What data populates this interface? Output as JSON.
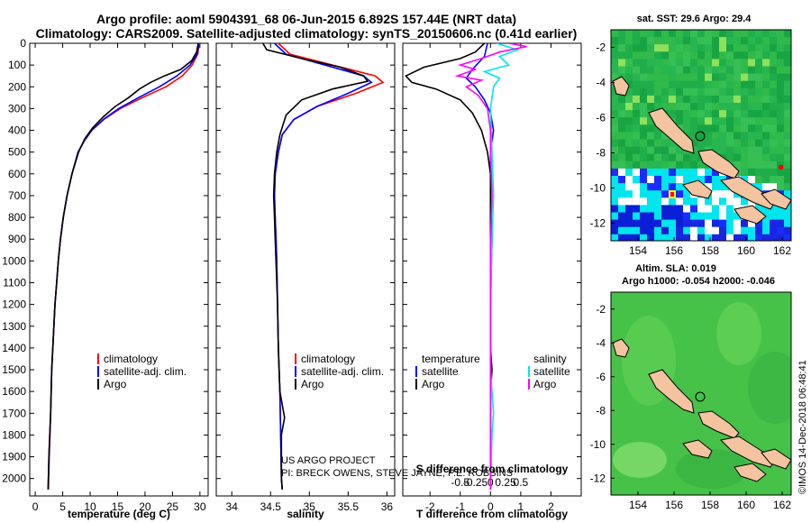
{
  "title": {
    "line1": "Argo profile: aoml 5904391_68 06-Jun-2015 6.892S 157.44E (NRT data)",
    "line2": "Climatology: CARS2009. Satellite-adjusted climatology: synTS_20150606.nc (0.41d earlier)"
  },
  "colors": {
    "climatology": "#ff0000",
    "satellite": "#0000ff",
    "argo": "#000000",
    "sat_salinity": "#00e5ee",
    "argo_salinity": "#ff00ff"
  },
  "chart_data": [
    {
      "id": "temperature",
      "type": "line",
      "xlabel": "temperature (deg C)",
      "xlim": [
        -1,
        31.5
      ],
      "xticks": [
        "0",
        "5",
        "10",
        "15",
        "20",
        "25",
        "30"
      ],
      "xtick_values": [
        0,
        5,
        10,
        15,
        20,
        25,
        30
      ],
      "ylim": [
        0,
        2080
      ],
      "yticks": [
        "0",
        "100",
        "200",
        "300",
        "400",
        "500",
        "600",
        "700",
        "800",
        "900",
        "1000",
        "1100",
        "1200",
        "1300",
        "1400",
        "1500",
        "1600",
        "1700",
        "1800",
        "1900",
        "2000"
      ],
      "ytick_values": [
        0,
        100,
        200,
        300,
        400,
        500,
        600,
        700,
        800,
        900,
        1000,
        1100,
        1200,
        1300,
        1400,
        1500,
        1600,
        1700,
        1800,
        1900,
        2000
      ],
      "legend": [
        "climatology",
        "satellite-adj. clim.",
        "Argo"
      ],
      "series": [
        {
          "name": "climatology",
          "color": "#ff0000",
          "points": [
            [
              29.9,
              0
            ],
            [
              29.6,
              50
            ],
            [
              28.6,
              100
            ],
            [
              26.8,
              150
            ],
            [
              23.8,
              200
            ],
            [
              19.5,
              250
            ],
            [
              15.5,
              300
            ],
            [
              12.5,
              350
            ],
            [
              10.3,
              400
            ],
            [
              8.9,
              450
            ],
            [
              7.8,
              500
            ],
            [
              6.7,
              600
            ],
            [
              5.8,
              700
            ],
            [
              5.1,
              800
            ],
            [
              4.6,
              900
            ],
            [
              4.2,
              1000
            ],
            [
              3.9,
              1100
            ],
            [
              3.6,
              1200
            ],
            [
              3.4,
              1300
            ],
            [
              3.2,
              1400
            ],
            [
              3.0,
              1500
            ],
            [
              2.9,
              1600
            ],
            [
              2.8,
              1700
            ],
            [
              2.7,
              1800
            ],
            [
              2.55,
              1900
            ],
            [
              2.45,
              2000
            ],
            [
              2.4,
              2050
            ]
          ]
        },
        {
          "name": "satellite-adj. clim.",
          "color": "#0000ff",
          "points": [
            [
              29.8,
              0
            ],
            [
              29.5,
              50
            ],
            [
              28.2,
              100
            ],
            [
              25.8,
              150
            ],
            [
              22.6,
              200
            ],
            [
              18.8,
              250
            ],
            [
              15.2,
              300
            ],
            [
              12.4,
              350
            ],
            [
              10.3,
              400
            ],
            [
              8.9,
              450
            ],
            [
              7.8,
              500
            ],
            [
              6.7,
              600
            ],
            [
              5.8,
              700
            ],
            [
              5.1,
              800
            ],
            [
              4.6,
              900
            ],
            [
              4.2,
              1000
            ],
            [
              3.9,
              1100
            ],
            [
              3.6,
              1200
            ],
            [
              3.4,
              1300
            ],
            [
              3.2,
              1400
            ],
            [
              3.0,
              1500
            ],
            [
              2.9,
              1600
            ],
            [
              2.8,
              1700
            ],
            [
              2.65,
              1800
            ],
            [
              2.5,
              1900
            ],
            [
              2.4,
              2000
            ],
            [
              2.35,
              2050
            ]
          ]
        },
        {
          "name": "Argo",
          "color": "#000000",
          "points": [
            [
              29.7,
              0
            ],
            [
              29.4,
              40
            ],
            [
              28.5,
              80
            ],
            [
              26.5,
              120
            ],
            [
              23.5,
              150
            ],
            [
              21.0,
              180
            ],
            [
              19.0,
              210
            ],
            [
              17.0,
              250
            ],
            [
              14.6,
              290
            ],
            [
              12.3,
              340
            ],
            [
              10.4,
              390
            ],
            [
              9.0,
              440
            ],
            [
              7.9,
              500
            ],
            [
              6.7,
              600
            ],
            [
              5.8,
              700
            ],
            [
              5.1,
              800
            ],
            [
              4.6,
              900
            ],
            [
              4.2,
              1000
            ],
            [
              3.9,
              1100
            ],
            [
              3.6,
              1200
            ],
            [
              3.4,
              1300
            ],
            [
              3.2,
              1400
            ],
            [
              3.0,
              1500
            ],
            [
              2.9,
              1600
            ],
            [
              2.8,
              1700
            ],
            [
              2.65,
              1800
            ],
            [
              2.5,
              1900
            ],
            [
              2.4,
              2000
            ],
            [
              2.35,
              2050
            ]
          ]
        }
      ]
    },
    {
      "id": "salinity",
      "type": "line",
      "xlabel": "salinity",
      "xlim": [
        33.8,
        36.1
      ],
      "xticks": [
        "34",
        "34.5",
        "35",
        "35.5",
        "36"
      ],
      "xtick_values": [
        34,
        34.5,
        35,
        35.5,
        36
      ],
      "ylim": [
        0,
        2080
      ],
      "legend": [
        "climatology",
        "satellite-adj. clim.",
        "Argo"
      ],
      "credits": [
        "US ARGO PROJECT",
        "PI: BRECK OWENS, STEVE JAYNE, P.E. ROBBINS"
      ],
      "series": [
        {
          "name": "climatology",
          "color": "#ff0000",
          "points": [
            [
              34.6,
              0
            ],
            [
              34.75,
              50
            ],
            [
              35.3,
              100
            ],
            [
              35.85,
              150
            ],
            [
              35.95,
              180
            ],
            [
              35.6,
              230
            ],
            [
              35.1,
              290
            ],
            [
              34.8,
              350
            ],
            [
              34.65,
              420
            ],
            [
              34.6,
              500
            ],
            [
              34.56,
              600
            ],
            [
              34.55,
              700
            ],
            [
              34.56,
              800
            ],
            [
              34.57,
              900
            ],
            [
              34.58,
              1000
            ],
            [
              34.59,
              1200
            ],
            [
              34.6,
              1400
            ],
            [
              34.62,
              1600
            ],
            [
              34.63,
              1800
            ],
            [
              34.64,
              2000
            ],
            [
              34.65,
              2050
            ]
          ]
        },
        {
          "name": "satellite-adj. clim.",
          "color": "#0000ff",
          "points": [
            [
              34.55,
              0
            ],
            [
              34.7,
              50
            ],
            [
              35.2,
              100
            ],
            [
              35.7,
              150
            ],
            [
              35.8,
              180
            ],
            [
              35.5,
              230
            ],
            [
              35.1,
              290
            ],
            [
              34.8,
              350
            ],
            [
              34.65,
              420
            ],
            [
              34.6,
              500
            ],
            [
              34.56,
              600
            ],
            [
              34.55,
              700
            ],
            [
              34.56,
              800
            ],
            [
              34.57,
              900
            ],
            [
              34.58,
              1000
            ],
            [
              34.59,
              1200
            ],
            [
              34.6,
              1400
            ],
            [
              34.62,
              1600
            ],
            [
              34.63,
              1800
            ],
            [
              34.64,
              2000
            ],
            [
              34.65,
              2050
            ]
          ]
        },
        {
          "name": "Argo",
          "color": "#000000",
          "points": [
            [
              34.4,
              0
            ],
            [
              34.45,
              30
            ],
            [
              34.9,
              70
            ],
            [
              35.4,
              110
            ],
            [
              35.7,
              150
            ],
            [
              35.75,
              175
            ],
            [
              35.3,
              210
            ],
            [
              34.9,
              260
            ],
            [
              34.7,
              330
            ],
            [
              34.62,
              420
            ],
            [
              34.58,
              500
            ],
            [
              34.55,
              600
            ],
            [
              34.54,
              700
            ],
            [
              34.55,
              800
            ],
            [
              34.56,
              900
            ],
            [
              34.57,
              1000
            ],
            [
              34.59,
              1200
            ],
            [
              34.6,
              1400
            ],
            [
              34.62,
              1600
            ],
            [
              34.68,
              1720
            ],
            [
              34.64,
              1800
            ],
            [
              34.64,
              2000
            ],
            [
              34.65,
              2050
            ]
          ]
        }
      ]
    },
    {
      "id": "difference",
      "type": "line",
      "xlabel": "T difference from climatology",
      "xlim": [
        -2.9,
        3.0
      ],
      "xticks": [
        "-2",
        "-1",
        "0",
        "1",
        "2"
      ],
      "xtick_values": [
        -2,
        -1,
        0,
        1,
        2
      ],
      "top_label": "S difference from climatology",
      "s_ticks": [
        "-0.5",
        "-0.25",
        "0",
        "0.25",
        "0.5"
      ],
      "s_tick_values": [
        -0.5,
        -0.25,
        0,
        0.25,
        0.5
      ],
      "legend": {
        "temp_header": "temperature",
        "sal_header": "salinity",
        "satellite": "satellite",
        "argo": "Argo"
      },
      "series": [
        {
          "name": "T satellite",
          "color": "#0000ff",
          "points": [
            [
              -0.1,
              0
            ],
            [
              -0.2,
              60
            ],
            [
              -0.6,
              120
            ],
            [
              -0.8,
              160
            ],
            [
              -0.5,
              200
            ],
            [
              -0.2,
              260
            ],
            [
              0.0,
              320
            ],
            [
              0.1,
              400
            ],
            [
              0.0,
              500
            ],
            [
              0.0,
              700
            ],
            [
              0.05,
              900
            ],
            [
              0.0,
              1200
            ],
            [
              0.0,
              1500
            ],
            [
              0.0,
              1800
            ],
            [
              0.0,
              2050
            ]
          ]
        },
        {
          "name": "T Argo",
          "color": "#000000",
          "points": [
            [
              -0.2,
              0
            ],
            [
              -0.5,
              40
            ],
            [
              -1.0,
              70
            ],
            [
              -2.2,
              110
            ],
            [
              -2.8,
              150
            ],
            [
              -2.6,
              180
            ],
            [
              -1.8,
              210
            ],
            [
              -1.0,
              260
            ],
            [
              -0.6,
              320
            ],
            [
              -0.3,
              400
            ],
            [
              -0.1,
              500
            ],
            [
              0.0,
              600
            ],
            [
              0.0,
              800
            ],
            [
              0.0,
              1000
            ],
            [
              0.0,
              1200
            ],
            [
              0.0,
              1400
            ],
            [
              0.05,
              1500
            ],
            [
              0.0,
              1600
            ],
            [
              0.0,
              1800
            ],
            [
              0.0,
              2050
            ]
          ]
        },
        {
          "name": "S satellite",
          "color": "#00e5ee",
          "points": [
            [
              0.2,
              0
            ],
            [
              0.9,
              30
            ],
            [
              0.3,
              60
            ],
            [
              0.6,
              100
            ],
            [
              -0.2,
              130
            ],
            [
              0.3,
              160
            ],
            [
              0.1,
              200
            ],
            [
              0.0,
              300
            ],
            [
              0.05,
              500
            ],
            [
              0.1,
              700
            ],
            [
              0.05,
              900
            ],
            [
              0.0,
              1200
            ],
            [
              0.0,
              1500
            ],
            [
              0.1,
              1700
            ],
            [
              0.05,
              1800
            ],
            [
              0.0,
              2050
            ]
          ]
        },
        {
          "name": "S Argo",
          "color": "#ff00ff",
          "points": [
            [
              0.6,
              0
            ],
            [
              1.2,
              15
            ],
            [
              0.3,
              40
            ],
            [
              -0.3,
              70
            ],
            [
              -1.0,
              100
            ],
            [
              -0.5,
              120
            ],
            [
              -1.1,
              150
            ],
            [
              -0.3,
              170
            ],
            [
              -0.8,
              200
            ],
            [
              -0.4,
              240
            ],
            [
              -0.1,
              300
            ],
            [
              0.0,
              400
            ],
            [
              0.0,
              500
            ],
            [
              0.05,
              700
            ],
            [
              0.0,
              900
            ],
            [
              0.0,
              1200
            ],
            [
              0.0,
              1500
            ],
            [
              0.0,
              1800
            ],
            [
              0.0,
              2050
            ]
          ]
        }
      ]
    }
  ],
  "maps": {
    "sst": {
      "title": "sat. SST: 29.6 Argo: 29.4",
      "yticks": [
        "-2",
        "-4",
        "-6",
        "-8",
        "-10",
        "-12"
      ],
      "xticks": [
        "154",
        "156",
        "158",
        "160",
        "162"
      ]
    },
    "sla": {
      "title_line1": "Altim. SLA: 0.019",
      "title_line2": "Argo h1000: -0.054 h2000: -0.046",
      "yticks": [
        "-2",
        "-4",
        "-6",
        "-8",
        "-10",
        "-12"
      ],
      "xticks": [
        "154",
        "156",
        "158",
        "160",
        "162"
      ]
    }
  },
  "footer": "©IMOS 14-Dec-2018 06:48:41"
}
